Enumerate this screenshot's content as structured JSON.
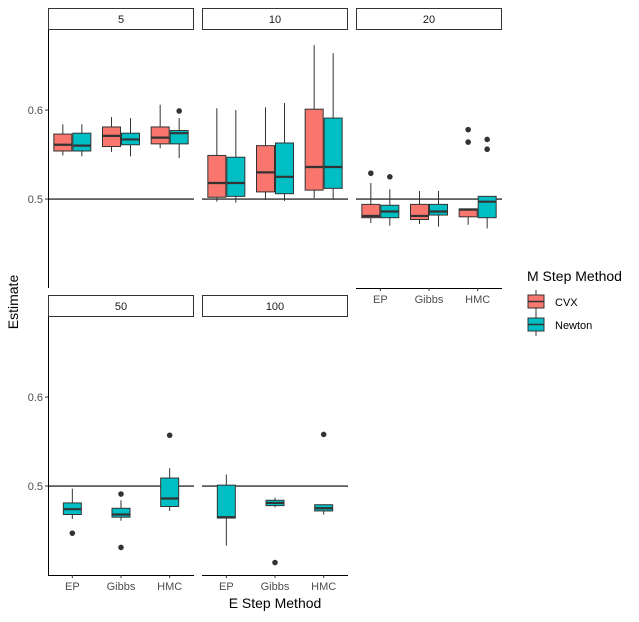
{
  "chart_data": {
    "type": "boxplot",
    "xlabel": "E Step Method",
    "ylabel": "Estimate",
    "categories": [
      "EP",
      "Gibbs",
      "HMC"
    ],
    "y_ticks": [
      0.5,
      0.6
    ],
    "reference_line": 0.5,
    "legend": {
      "title": "M Step Method",
      "placement": "right",
      "entries": [
        {
          "name": "CVX",
          "color": "#F8766D"
        },
        {
          "name": "Newton",
          "color": "#00BFC4"
        }
      ]
    },
    "panels": [
      {
        "label": "5",
        "ylim": [
          0.4,
          0.69
        ],
        "show_x_ticks": false,
        "boxes": [
          {
            "category": "EP",
            "series": "CVX",
            "min": 0.549,
            "q1": 0.554,
            "median": 0.561,
            "q3": 0.573,
            "max": 0.584,
            "outliers": []
          },
          {
            "category": "EP",
            "series": "Newton",
            "min": 0.548,
            "q1": 0.554,
            "median": 0.56,
            "q3": 0.574,
            "max": 0.584,
            "outliers": []
          },
          {
            "category": "Gibbs",
            "series": "CVX",
            "min": 0.553,
            "q1": 0.559,
            "median": 0.571,
            "q3": 0.581,
            "max": 0.592,
            "outliers": []
          },
          {
            "category": "Gibbs",
            "series": "Newton",
            "min": 0.548,
            "q1": 0.561,
            "median": 0.567,
            "q3": 0.574,
            "max": 0.591,
            "outliers": []
          },
          {
            "category": "HMC",
            "series": "CVX",
            "min": 0.557,
            "q1": 0.562,
            "median": 0.569,
            "q3": 0.581,
            "max": 0.606,
            "outliers": []
          },
          {
            "category": "HMC",
            "series": "Newton",
            "min": 0.546,
            "q1": 0.562,
            "median": 0.574,
            "q3": 0.577,
            "max": 0.591,
            "outliers": [
              0.599
            ]
          }
        ]
      },
      {
        "label": "10",
        "ylim": [
          0.4,
          0.69
        ],
        "show_x_ticks": false,
        "boxes": [
          {
            "category": "EP",
            "series": "CVX",
            "min": 0.497,
            "q1": 0.502,
            "median": 0.518,
            "q3": 0.549,
            "max": 0.602,
            "outliers": []
          },
          {
            "category": "EP",
            "series": "Newton",
            "min": 0.496,
            "q1": 0.503,
            "median": 0.518,
            "q3": 0.547,
            "max": 0.6,
            "outliers": []
          },
          {
            "category": "Gibbs",
            "series": "CVX",
            "min": 0.499,
            "q1": 0.508,
            "median": 0.53,
            "q3": 0.56,
            "max": 0.603,
            "outliers": []
          },
          {
            "category": "Gibbs",
            "series": "Newton",
            "min": 0.498,
            "q1": 0.506,
            "median": 0.525,
            "q3": 0.563,
            "max": 0.608,
            "outliers": []
          },
          {
            "category": "HMC",
            "series": "CVX",
            "min": 0.501,
            "q1": 0.51,
            "median": 0.536,
            "q3": 0.601,
            "max": 0.673,
            "outliers": []
          },
          {
            "category": "HMC",
            "series": "Newton",
            "min": 0.5,
            "q1": 0.512,
            "median": 0.536,
            "q3": 0.591,
            "max": 0.664,
            "outliers": []
          }
        ]
      },
      {
        "label": "20",
        "ylim": [
          0.4,
          0.69
        ],
        "show_x_ticks": true,
        "boxes": [
          {
            "category": "EP",
            "series": "CVX",
            "min": 0.473,
            "q1": 0.479,
            "median": 0.481,
            "q3": 0.494,
            "max": 0.518,
            "outliers": [
              0.529
            ]
          },
          {
            "category": "EP",
            "series": "Newton",
            "min": 0.47,
            "q1": 0.479,
            "median": 0.486,
            "q3": 0.493,
            "max": 0.511,
            "outliers": [
              0.525
            ]
          },
          {
            "category": "Gibbs",
            "series": "CVX",
            "min": 0.472,
            "q1": 0.477,
            "median": 0.481,
            "q3": 0.494,
            "max": 0.509,
            "outliers": []
          },
          {
            "category": "Gibbs",
            "series": "Newton",
            "min": 0.469,
            "q1": 0.482,
            "median": 0.486,
            "q3": 0.494,
            "max": 0.509,
            "outliers": []
          },
          {
            "category": "HMC",
            "series": "CVX",
            "min": 0.471,
            "q1": 0.48,
            "median": 0.488,
            "q3": 0.489,
            "max": 0.489,
            "outliers": [
              0.564,
              0.578
            ]
          },
          {
            "category": "HMC",
            "series": "Newton",
            "min": 0.467,
            "q1": 0.479,
            "median": 0.497,
            "q3": 0.503,
            "max": 0.503,
            "outliers": [
              0.556,
              0.567
            ]
          }
        ]
      },
      {
        "label": "50",
        "ylim": [
          0.4,
          0.69
        ],
        "show_x_ticks": true,
        "boxes": [
          {
            "category": "EP",
            "series": "Newton",
            "min": 0.463,
            "q1": 0.468,
            "median": 0.474,
            "q3": 0.481,
            "max": 0.497,
            "outliers": [
              0.447
            ]
          },
          {
            "category": "Gibbs",
            "series": "Newton",
            "min": 0.461,
            "q1": 0.465,
            "median": 0.468,
            "q3": 0.475,
            "max": 0.484,
            "outliers": [
              0.431,
              0.491
            ]
          },
          {
            "category": "HMC",
            "series": "Newton",
            "min": 0.472,
            "q1": 0.477,
            "median": 0.486,
            "q3": 0.509,
            "max": 0.52,
            "outliers": [
              0.557
            ]
          }
        ]
      },
      {
        "label": "100",
        "ylim": [
          0.4,
          0.69
        ],
        "show_x_ticks": true,
        "boxes": [
          {
            "category": "EP",
            "series": "Newton",
            "min": 0.433,
            "q1": 0.464,
            "median": 0.465,
            "q3": 0.501,
            "max": 0.513,
            "outliers": []
          },
          {
            "category": "Gibbs",
            "series": "Newton",
            "min": 0.476,
            "q1": 0.478,
            "median": 0.481,
            "q3": 0.484,
            "max": 0.487,
            "outliers": [
              0.414
            ]
          },
          {
            "category": "HMC",
            "series": "Newton",
            "min": 0.468,
            "q1": 0.472,
            "median": 0.475,
            "q3": 0.479,
            "max": 0.479,
            "outliers": [
              0.558
            ]
          }
        ]
      }
    ]
  }
}
